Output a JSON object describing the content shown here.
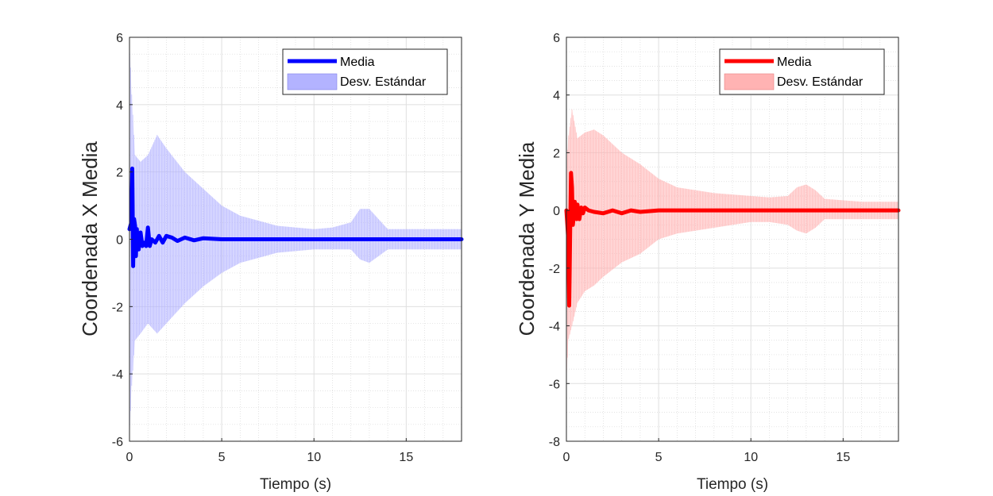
{
  "chart_data": [
    {
      "type": "line",
      "title": "",
      "xlabel": "Tiempo (s)",
      "ylabel": "Coordenada X Media",
      "xlim": [
        0,
        18
      ],
      "ylim": [
        -6,
        6
      ],
      "xticks": [
        "0",
        "5",
        "10",
        "15"
      ],
      "yticks": [
        "-6",
        "-4",
        "-2",
        "0",
        "2",
        "4",
        "6"
      ],
      "grid": true,
      "minor_grid": true,
      "legend_position": "top-right",
      "colors": {
        "line": "#0000ff",
        "band": "#b3b3ff"
      },
      "series": [
        {
          "name": "Media",
          "x": [
            0.0,
            0.1,
            0.15,
            0.2,
            0.25,
            0.3,
            0.35,
            0.4,
            0.45,
            0.5,
            0.6,
            0.7,
            0.8,
            0.9,
            1.0,
            1.1,
            1.2,
            1.4,
            1.6,
            1.8,
            2.0,
            2.3,
            2.6,
            3.0,
            3.5,
            4.0,
            5.0,
            6.0,
            8.0,
            12.0,
            18.0
          ],
          "y": [
            0.3,
            0.5,
            2.1,
            -0.8,
            0.6,
            0.4,
            -0.5,
            0.3,
            -0.3,
            -0.3,
            0.2,
            -0.2,
            -0.1,
            -0.2,
            0.35,
            -0.2,
            0.0,
            -0.1,
            0.1,
            -0.1,
            0.1,
            0.05,
            -0.05,
            0.05,
            -0.03,
            0.03,
            0.0,
            0.0,
            0.0,
            0.0,
            0.0
          ]
        },
        {
          "name": "Desv. Estándar",
          "x": [
            0,
            0.1,
            0.3,
            0.6,
            1.0,
            1.5,
            2.0,
            3.0,
            4.0,
            5.0,
            6.0,
            8.0,
            10.0,
            11.0,
            12.0,
            12.5,
            13.0,
            13.5,
            14.0,
            15.0,
            16.0,
            18.0
          ],
          "upper": [
            6.0,
            4.5,
            2.5,
            2.3,
            2.5,
            3.1,
            2.7,
            2.0,
            1.5,
            1.0,
            0.7,
            0.4,
            0.3,
            0.35,
            0.5,
            0.9,
            0.9,
            0.6,
            0.3,
            0.3,
            0.3,
            0.3
          ],
          "lower": [
            -6.0,
            -4.5,
            -3.0,
            -2.8,
            -2.5,
            -2.8,
            -2.5,
            -1.9,
            -1.4,
            -1.0,
            -0.7,
            -0.4,
            -0.3,
            -0.3,
            -0.3,
            -0.6,
            -0.7,
            -0.5,
            -0.3,
            -0.3,
            -0.3,
            -0.3
          ]
        }
      ]
    },
    {
      "type": "line",
      "title": "",
      "xlabel": "Tiempo (s)",
      "ylabel": "Coordenada Y Media",
      "xlim": [
        0,
        18
      ],
      "ylim": [
        -8,
        6
      ],
      "xticks": [
        "0",
        "5",
        "10",
        "15"
      ],
      "yticks": [
        "-8",
        "-6",
        "-4",
        "-2",
        "0",
        "2",
        "4",
        "6"
      ],
      "grid": true,
      "minor_grid": true,
      "legend_position": "top-right",
      "colors": {
        "line": "#ff0000",
        "band": "#ffb3b3"
      },
      "series": [
        {
          "name": "Media",
          "x": [
            0.0,
            0.05,
            0.1,
            0.15,
            0.2,
            0.25,
            0.3,
            0.35,
            0.4,
            0.45,
            0.5,
            0.55,
            0.6,
            0.7,
            0.8,
            0.9,
            1.0,
            1.2,
            1.5,
            2.0,
            2.5,
            3.0,
            3.5,
            4.0,
            5.0,
            8.0,
            12.0,
            18.0
          ],
          "y": [
            0.0,
            -0.5,
            -1.0,
            -3.3,
            -1.0,
            1.3,
            0.8,
            -0.5,
            -0.2,
            0.3,
            0.0,
            -0.3,
            0.2,
            -0.3,
            0.1,
            -0.1,
            0.1,
            0.0,
            -0.05,
            -0.1,
            0.0,
            -0.1,
            0.0,
            -0.05,
            0.0,
            0.0,
            0.0,
            0.0
          ]
        },
        {
          "name": "Desv. Estándar",
          "x": [
            0,
            0.1,
            0.3,
            0.6,
            1.0,
            1.5,
            2.0,
            3.0,
            4.0,
            5.0,
            6.0,
            8.0,
            10.0,
            11.0,
            12.0,
            12.5,
            13.0,
            13.5,
            14.0,
            15.0,
            16.0,
            18.0
          ],
          "upper": [
            1.5,
            2.5,
            3.5,
            2.5,
            2.7,
            2.8,
            2.6,
            2.0,
            1.6,
            1.1,
            0.8,
            0.6,
            0.5,
            0.45,
            0.5,
            0.8,
            0.9,
            0.7,
            0.4,
            0.35,
            0.3,
            0.3
          ],
          "lower": [
            -6.0,
            -4.5,
            -4.0,
            -3.2,
            -2.8,
            -2.6,
            -2.3,
            -1.8,
            -1.5,
            -1.0,
            -0.8,
            -0.6,
            -0.4,
            -0.4,
            -0.5,
            -0.7,
            -0.8,
            -0.6,
            -0.3,
            -0.3,
            -0.3,
            -0.3
          ]
        }
      ]
    }
  ]
}
